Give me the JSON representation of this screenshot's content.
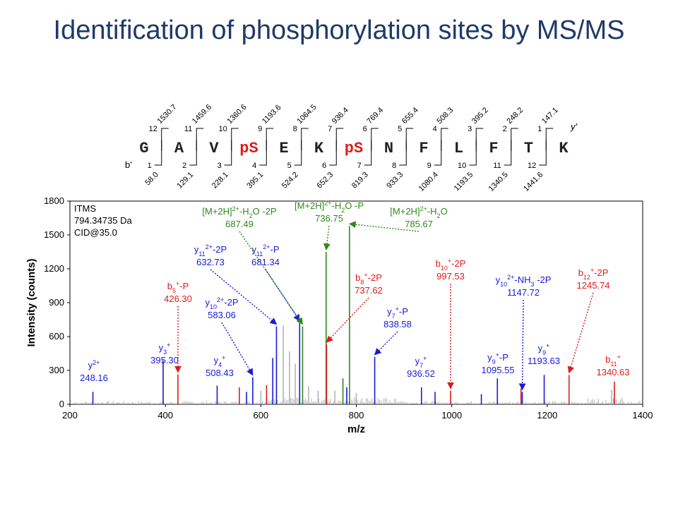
{
  "title": "Identification of phosphorylation sites by MS/MS",
  "colors": {
    "title": "#1f3a68",
    "blue": "#1a1adb",
    "red": "#e01b1b",
    "green": "#2e8a1a",
    "grey": "#b4b4b4",
    "black": "#000000"
  },
  "sequence": {
    "residues": [
      "G",
      "A",
      "V",
      "pS",
      "E",
      "K",
      "pS",
      "N",
      "F",
      "L",
      "F",
      "T",
      "K"
    ],
    "phospho": [
      false,
      false,
      false,
      true,
      false,
      false,
      true,
      false,
      false,
      false,
      false,
      false,
      false
    ],
    "y_label": "y'",
    "b_label": "b'",
    "y_numbers": [
      "12",
      "11",
      "10",
      "9",
      "8",
      "7",
      "6",
      "5",
      "4",
      "3",
      "2",
      "1"
    ],
    "y_masses": [
      "1530.7",
      "1459.6",
      "1360.6",
      "1193.6",
      "1064.5",
      "936.4",
      "769.4",
      "655.4",
      "508.3",
      "395.2",
      "248.2",
      "147.1"
    ],
    "b_numbers": [
      "1",
      "2",
      "3",
      "4",
      "5",
      "6",
      "7",
      "8",
      "9",
      "10",
      "11",
      "12"
    ],
    "b_masses": [
      "58.0",
      "129.1",
      "228.1",
      "395.1",
      "524.2",
      "652.3",
      "819.3",
      "933.3",
      "1080.4",
      "1193.5",
      "1340.5",
      "1441.6"
    ]
  },
  "info_box": [
    "ITMS",
    "794.34735 Da",
    "CID@35.0"
  ],
  "chart_data": {
    "type": "bar",
    "xlabel": "m/z",
    "ylabel": "Intensity (counts)",
    "xlim": [
      200,
      1400
    ],
    "ylim": [
      0,
      1800
    ],
    "xticks": [
      200,
      400,
      600,
      800,
      1000,
      1200,
      1400
    ],
    "yticks": [
      0,
      300,
      600,
      900,
      1200,
      1500,
      1800
    ],
    "peaks": [
      {
        "mz": 248.16,
        "intensity": 110,
        "color": "blue"
      },
      {
        "mz": 395.3,
        "intensity": 390,
        "color": "blue"
      },
      {
        "mz": 426.3,
        "intensity": 265,
        "color": "red"
      },
      {
        "mz": 508.43,
        "intensity": 165,
        "color": "blue"
      },
      {
        "mz": 555.0,
        "intensity": 150,
        "color": "red"
      },
      {
        "mz": 570.0,
        "intensity": 110,
        "color": "blue"
      },
      {
        "mz": 583.06,
        "intensity": 240,
        "color": "blue"
      },
      {
        "mz": 600.0,
        "intensity": 120,
        "color": "grey"
      },
      {
        "mz": 612.0,
        "intensity": 170,
        "color": "red"
      },
      {
        "mz": 625.0,
        "intensity": 410,
        "color": "blue"
      },
      {
        "mz": 632.73,
        "intensity": 690,
        "color": "blue"
      },
      {
        "mz": 647.0,
        "intensity": 700,
        "color": "grey"
      },
      {
        "mz": 660.0,
        "intensity": 470,
        "color": "grey"
      },
      {
        "mz": 672.0,
        "intensity": 360,
        "color": "grey"
      },
      {
        "mz": 681.34,
        "intensity": 720,
        "color": "blue"
      },
      {
        "mz": 687.49,
        "intensity": 690,
        "color": "green"
      },
      {
        "mz": 700.0,
        "intensity": 160,
        "color": "grey"
      },
      {
        "mz": 720.0,
        "intensity": 120,
        "color": "grey"
      },
      {
        "mz": 736.75,
        "intensity": 1350,
        "color": "green"
      },
      {
        "mz": 737.62,
        "intensity": 530,
        "color": "red"
      },
      {
        "mz": 755.0,
        "intensity": 120,
        "color": "grey"
      },
      {
        "mz": 772.0,
        "intensity": 230,
        "color": "green"
      },
      {
        "mz": 780.0,
        "intensity": 150,
        "color": "blue"
      },
      {
        "mz": 785.67,
        "intensity": 1580,
        "color": "green"
      },
      {
        "mz": 800.0,
        "intensity": 100,
        "color": "grey"
      },
      {
        "mz": 838.58,
        "intensity": 420,
        "color": "blue"
      },
      {
        "mz": 936.52,
        "intensity": 150,
        "color": "blue"
      },
      {
        "mz": 965.0,
        "intensity": 110,
        "color": "blue"
      },
      {
        "mz": 997.53,
        "intensity": 120,
        "color": "red"
      },
      {
        "mz": 1062.0,
        "intensity": 90,
        "color": "blue"
      },
      {
        "mz": 1095.55,
        "intensity": 230,
        "color": "blue"
      },
      {
        "mz": 1145.0,
        "intensity": 140,
        "color": "red"
      },
      {
        "mz": 1147.72,
        "intensity": 110,
        "color": "blue"
      },
      {
        "mz": 1193.63,
        "intensity": 260,
        "color": "blue"
      },
      {
        "mz": 1245.74,
        "intensity": 260,
        "color": "red"
      },
      {
        "mz": 1340.63,
        "intensity": 200,
        "color": "red"
      },
      {
        "mz": 1335.0,
        "intensity": 130,
        "color": "grey"
      }
    ],
    "annotations": [
      {
        "color": "blue",
        "lines": [
          [
            {
              "t": "y"
            },
            {
              "t": "2+",
              "sup": true
            }
          ],
          [
            {
              "t": "248.16"
            }
          ]
        ],
        "label_at": [
          133,
          522
        ],
        "arrow": false
      },
      {
        "color": "blue",
        "lines": [
          [
            {
              "t": "y"
            },
            {
              "t": "3",
              "sub": true
            },
            {
              "t": "+",
              "sup": true
            }
          ],
          [
            {
              "t": "395.30"
            }
          ]
        ],
        "label_at": [
          233,
          497
        ],
        "arrow": false
      },
      {
        "color": "red",
        "lines": [
          [
            {
              "t": "b"
            },
            {
              "t": "5",
              "sub": true
            },
            {
              "t": "+",
              "sup": true
            },
            {
              "t": "-P"
            }
          ],
          [
            {
              "t": "426.30"
            }
          ]
        ],
        "label_at": [
          252,
          410
        ],
        "arrow": true,
        "target_mz": 426.3,
        "target_int": 265
      },
      {
        "color": "blue",
        "lines": [
          [
            {
              "t": "y"
            },
            {
              "t": "4",
              "sub": true
            },
            {
              "t": "+",
              "sup": true
            }
          ],
          [
            {
              "t": "508.43"
            }
          ]
        ],
        "label_at": [
          311,
          515
        ],
        "arrow": false
      },
      {
        "color": "blue",
        "lines": [
          [
            {
              "t": "y"
            },
            {
              "t": "10",
              "sub": true
            },
            {
              "t": "2+",
              "sup": true
            },
            {
              "t": "-2P"
            }
          ],
          [
            {
              "t": "583.06"
            }
          ]
        ],
        "label_at": [
          314,
          433
        ],
        "arrow": true,
        "target_mz": 583.06,
        "target_int": 240
      },
      {
        "color": "blue",
        "lines": [
          [
            {
              "t": "y"
            },
            {
              "t": "11",
              "sub": true
            },
            {
              "t": "2+",
              "sup": true
            },
            {
              "t": "-2P"
            }
          ],
          [
            {
              "t": "632.73"
            }
          ]
        ],
        "label_at": [
          298,
          358
        ],
        "arrow": true,
        "target_mz": 632.73,
        "target_int": 690
      },
      {
        "color": "blue",
        "lines": [
          [
            {
              "t": "y"
            },
            {
              "t": "11",
              "sub": true
            },
            {
              "t": "2+",
              "sup": true
            },
            {
              "t": "-P"
            }
          ],
          [
            {
              "t": "681.34"
            }
          ]
        ],
        "label_at": [
          376,
          358
        ],
        "arrow": true,
        "target_mz": 681.34,
        "target_int": 720
      },
      {
        "color": "green",
        "lines": [
          [
            {
              "t": "[M+2H]"
            },
            {
              "t": "2+",
              "sup": true
            },
            {
              "t": "-H"
            },
            {
              "t": "2",
              "sub": true
            },
            {
              "t": "O -2P"
            }
          ],
          [
            {
              "t": "687.49"
            }
          ]
        ],
        "label_at": [
          339,
          304
        ],
        "arrow": true,
        "target_mz": 687.49,
        "target_int": 690
      },
      {
        "color": "green",
        "lines": [
          [
            {
              "t": "[M+2H]"
            },
            {
              "t": "2+",
              "sup": true
            },
            {
              "t": "-H"
            },
            {
              "t": "2",
              "sub": true
            },
            {
              "t": "O -P"
            }
          ],
          [
            {
              "t": "736.75"
            }
          ]
        ],
        "label_at": [
          466,
          296
        ],
        "arrow": true,
        "target_mz": 736.75,
        "target_int": 1350
      },
      {
        "color": "green",
        "lines": [
          [
            {
              "t": "[M+2H]"
            },
            {
              "t": "2+",
              "sup": true
            },
            {
              "t": "-H"
            },
            {
              "t": "2",
              "sub": true
            },
            {
              "t": "O"
            }
          ],
          [
            {
              "t": "785.67"
            }
          ]
        ],
        "label_at": [
          593,
          304
        ],
        "arrow": true,
        "target_mz": 785.67,
        "target_int": 1580
      },
      {
        "color": "red",
        "lines": [
          [
            {
              "t": "b"
            },
            {
              "t": "8",
              "sub": true
            },
            {
              "t": "+",
              "sup": true
            },
            {
              "t": "-2P"
            }
          ],
          [
            {
              "t": "737.62"
            }
          ]
        ],
        "label_at": [
          522,
          398
        ],
        "arrow": true,
        "target_mz": 737.62,
        "target_int": 530
      },
      {
        "color": "blue",
        "lines": [
          [
            {
              "t": "y"
            },
            {
              "t": "7",
              "sub": true
            },
            {
              "t": "+",
              "sup": true
            },
            {
              "t": "-P"
            }
          ],
          [
            {
              "t": "838.58"
            }
          ]
        ],
        "label_at": [
          563,
          446
        ],
        "arrow": true,
        "target_mz": 838.58,
        "target_int": 420
      },
      {
        "color": "blue",
        "lines": [
          [
            {
              "t": "y"
            },
            {
              "t": "7",
              "sub": true
            },
            {
              "t": "+",
              "sup": true
            }
          ],
          [
            {
              "t": "936.52"
            }
          ]
        ],
        "label_at": [
          596,
          516
        ],
        "arrow": false
      },
      {
        "color": "red",
        "lines": [
          [
            {
              "t": "b"
            },
            {
              "t": "10",
              "sub": true
            },
            {
              "t": "+",
              "sup": true
            },
            {
              "t": "-2P"
            }
          ],
          [
            {
              "t": "997.53"
            }
          ]
        ],
        "label_at": [
          638,
          378
        ],
        "arrow": true,
        "target_mz": 997.53,
        "target_int": 120
      },
      {
        "color": "blue",
        "lines": [
          [
            {
              "t": "y"
            },
            {
              "t": "10",
              "sub": true
            },
            {
              "t": "2+",
              "sup": true
            },
            {
              "t": "-NH"
            },
            {
              "t": "3",
              "sub": true
            },
            {
              "t": " -2P"
            }
          ],
          [
            {
              "t": "1147.72"
            }
          ]
        ],
        "label_at": [
          741,
          401
        ],
        "arrow": true,
        "target_mz": 1147.72,
        "target_int": 110
      },
      {
        "color": "blue",
        "lines": [
          [
            {
              "t": "y"
            },
            {
              "t": "9",
              "sub": true
            },
            {
              "t": "+",
              "sup": true
            },
            {
              "t": "-P"
            }
          ],
          [
            {
              "t": "1095.55"
            }
          ]
        ],
        "label_at": [
          705,
          511
        ],
        "arrow": false
      },
      {
        "color": "blue",
        "lines": [
          [
            {
              "t": "y"
            },
            {
              "t": "9",
              "sub": true
            },
            {
              "t": "+",
              "sup": true
            }
          ],
          [
            {
              "t": "1193.63"
            }
          ]
        ],
        "label_at": [
          770,
          498
        ],
        "arrow": false
      },
      {
        "color": "red",
        "lines": [
          [
            {
              "t": "b"
            },
            {
              "t": "12",
              "sub": true
            },
            {
              "t": "+",
              "sup": true
            },
            {
              "t": "-2P"
            }
          ],
          [
            {
              "t": "1245.74"
            }
          ]
        ],
        "label_at": [
          840,
          391
        ],
        "arrow": true,
        "target_mz": 1245.74,
        "target_int": 260
      },
      {
        "color": "red",
        "lines": [
          [
            {
              "t": "b"
            },
            {
              "t": "11",
              "sub": true
            },
            {
              "t": "+",
              "sup": true
            }
          ],
          [
            {
              "t": "1340.63"
            }
          ]
        ],
        "label_at": [
          868,
          514
        ],
        "arrow": false
      }
    ]
  }
}
